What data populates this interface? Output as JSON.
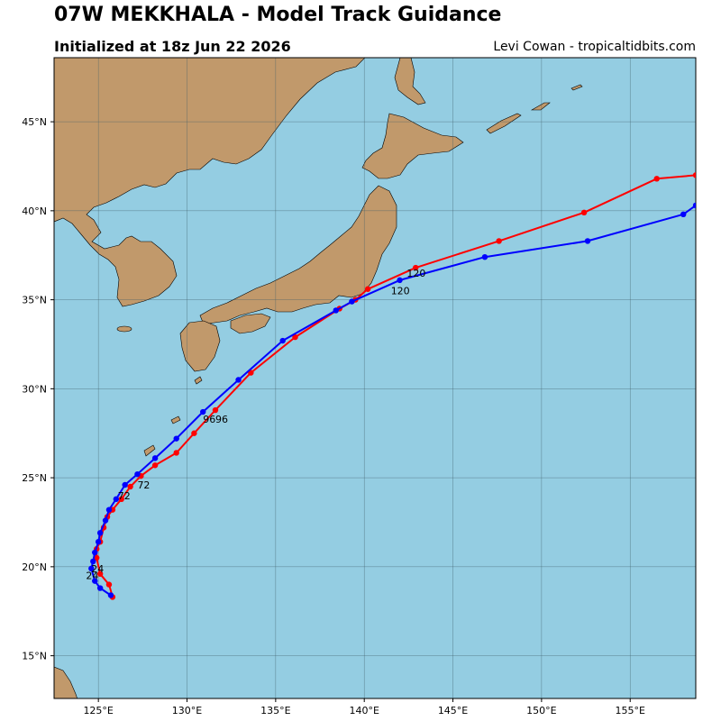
{
  "header": {
    "title": "07W MEKKHALA - Model Track Guidance",
    "subtitle": "Initialized at 18z Jun 22 2026",
    "credit": "Levi Cowan - tropicaltidbits.com"
  },
  "map": {
    "lon_range": [
      122.5,
      158.7
    ],
    "lat_range": [
      12.6,
      48.6
    ],
    "ocean_color": "#94cde2",
    "land_color": "#c1996b",
    "grid_color": "#40606a",
    "lon_ticks": [
      {
        "value": 125,
        "label": "125°E"
      },
      {
        "value": 130,
        "label": "130°E"
      },
      {
        "value": 135,
        "label": "135°E"
      },
      {
        "value": 140,
        "label": "140°E"
      },
      {
        "value": 145,
        "label": "145°E"
      },
      {
        "value": 150,
        "label": "150°E"
      },
      {
        "value": 155,
        "label": "155°E"
      }
    ],
    "lat_ticks": [
      {
        "value": 15,
        "label": "15°N"
      },
      {
        "value": 20,
        "label": "20°N"
      },
      {
        "value": 25,
        "label": "25°N"
      },
      {
        "value": 30,
        "label": "30°N"
      },
      {
        "value": 35,
        "label": "35°N"
      },
      {
        "value": 40,
        "label": "40°N"
      },
      {
        "value": 45,
        "label": "45°N"
      }
    ]
  },
  "chart_data": {
    "type": "line",
    "series": [
      {
        "color": "#ff0000",
        "points": [
          [
            125.8,
            18.3
          ],
          [
            125.6,
            19.0
          ],
          [
            125.1,
            19.6
          ],
          [
            124.9,
            20.5
          ],
          [
            124.9,
            21.0
          ],
          [
            125.1,
            21.4
          ],
          [
            125.3,
            22.2
          ],
          [
            125.5,
            22.8
          ],
          [
            125.8,
            23.2
          ],
          [
            126.3,
            23.8
          ],
          [
            126.8,
            24.5
          ],
          [
            127.4,
            25.1
          ],
          [
            128.2,
            25.7
          ],
          [
            129.4,
            26.4
          ],
          [
            130.4,
            27.5
          ],
          [
            131.6,
            28.8
          ],
          [
            133.6,
            30.9
          ],
          [
            136.1,
            32.9
          ],
          [
            138.6,
            34.5
          ],
          [
            139.5,
            35.0
          ],
          [
            140.2,
            35.6
          ],
          [
            142.9,
            36.8
          ],
          [
            147.6,
            38.3
          ],
          [
            152.4,
            39.9
          ],
          [
            156.5,
            41.8
          ],
          [
            158.7,
            42.0
          ]
        ],
        "hour_labels": [
          {
            "hour": "24",
            "lon": 124.6,
            "lat": 19.7
          },
          {
            "hour": "72",
            "lon": 127.2,
            "lat": 24.4
          },
          {
            "hour": "96",
            "lon": 131.6,
            "lat": 28.1
          },
          {
            "hour": "120",
            "lon": 142.4,
            "lat": 36.3
          }
        ]
      },
      {
        "color": "#0000ff",
        "points": [
          [
            125.7,
            18.4
          ],
          [
            125.1,
            18.8
          ],
          [
            124.8,
            19.2
          ],
          [
            124.6,
            19.9
          ],
          [
            124.7,
            20.3
          ],
          [
            124.8,
            20.8
          ],
          [
            125.0,
            21.4
          ],
          [
            125.1,
            21.9
          ],
          [
            125.4,
            22.6
          ],
          [
            125.6,
            23.2
          ],
          [
            126.0,
            23.8
          ],
          [
            126.5,
            24.6
          ],
          [
            127.2,
            25.2
          ],
          [
            128.2,
            26.1
          ],
          [
            129.4,
            27.2
          ],
          [
            130.9,
            28.7
          ],
          [
            132.9,
            30.5
          ],
          [
            135.4,
            32.7
          ],
          [
            138.4,
            34.4
          ],
          [
            139.3,
            34.9
          ],
          [
            142.0,
            36.1
          ],
          [
            146.8,
            37.4
          ],
          [
            152.6,
            38.3
          ],
          [
            158.0,
            39.8
          ],
          [
            158.7,
            40.3
          ]
        ],
        "hour_labels": [
          {
            "hour": "24",
            "lon": 124.3,
            "lat": 19.3
          },
          {
            "hour": "72",
            "lon": 126.1,
            "lat": 23.8
          },
          {
            "hour": "96",
            "lon": 130.9,
            "lat": 28.1
          },
          {
            "hour": "120",
            "lon": 141.5,
            "lat": 35.3
          }
        ]
      }
    ]
  }
}
